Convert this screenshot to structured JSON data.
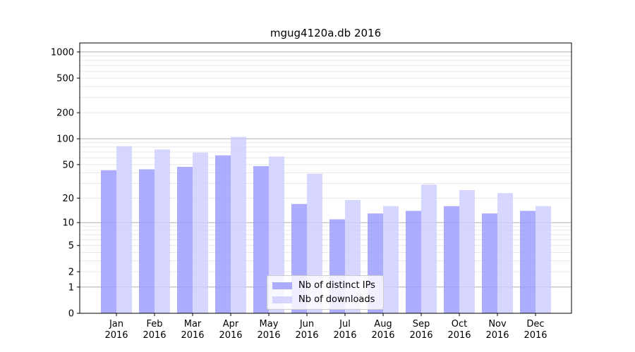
{
  "chart_data": {
    "type": "bar",
    "title": "mgug4120a.db 2016",
    "categories": [
      "Jan",
      "Feb",
      "Mar",
      "Apr",
      "May",
      "Jun",
      "Jul",
      "Aug",
      "Sep",
      "Oct",
      "Nov",
      "Dec"
    ],
    "year_label": "2016",
    "series": [
      {
        "name": "Nb of distinct IPs",
        "color": "#9999ff",
        "values": [
          43,
          44,
          47,
          64,
          48,
          17,
          11,
          13,
          14,
          16,
          13,
          14
        ]
      },
      {
        "name": "Nb of downloads",
        "color": "#ccccff",
        "values": [
          82,
          75,
          69,
          105,
          62,
          39,
          19,
          16,
          29,
          25,
          23,
          16
        ]
      }
    ],
    "bar_alpha": 0.8,
    "yscale": "log1p",
    "ylim": [
      0,
      1270
    ],
    "yticks": [
      0,
      1,
      2,
      5,
      10,
      20,
      50,
      100,
      200,
      500,
      1000
    ],
    "grid": true,
    "major_grid_color": "#b0b0b0",
    "minor_grid_color": "#e8e8e8",
    "legend_position": "lower center"
  }
}
